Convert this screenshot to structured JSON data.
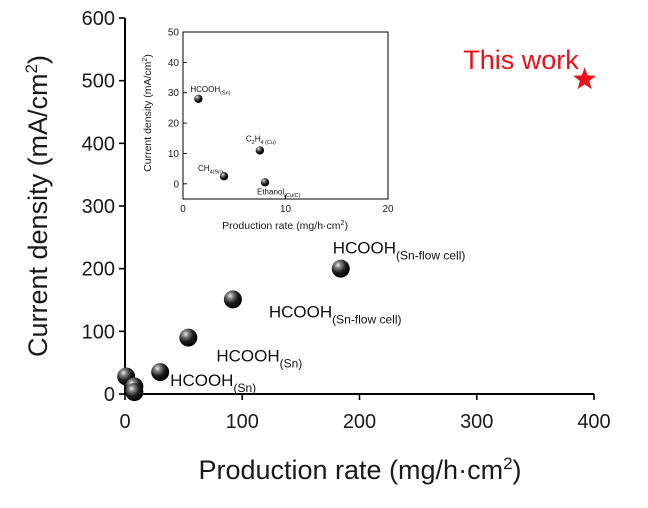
{
  "chart_data": [
    {
      "type": "scatter",
      "xlabel": "Production rate (mg/h·cm",
      "xlabel_sup": "2",
      "xlabel_end": ")",
      "ylabel": "Current density (mA/cm",
      "ylabel_sup": "2",
      "ylabel_end": ")",
      "xlim": [
        0,
        400
      ],
      "ylim": [
        0,
        600
      ],
      "xticks": [
        "0",
        "100",
        "200",
        "300",
        "400"
      ],
      "yticks": [
        "0",
        "100",
        "200",
        "300",
        "400",
        "500",
        "600"
      ],
      "grid": false,
      "points": [
        {
          "x": 1,
          "y": 28
        },
        {
          "x": 8,
          "y": 12
        },
        {
          "x": 8,
          "y": 3
        },
        {
          "x": 30,
          "y": 35,
          "label": "HCOOH",
          "sub": "(Sn)"
        },
        {
          "x": 54,
          "y": 90,
          "label": "HCOOH",
          "sub": "(Sn)"
        },
        {
          "x": 92,
          "y": 151,
          "label": "HCOOH",
          "sub": "(Sn-flow cell)"
        },
        {
          "x": 184,
          "y": 200,
          "label": "HCOOH",
          "sub": "(Sn-flow cell)"
        }
      ],
      "highlight": {
        "x": 392,
        "y": 502,
        "marker": "star",
        "color": "#e8121a",
        "label": "This work"
      },
      "marker_color": "#111111"
    },
    {
      "type": "scatter",
      "role": "inset",
      "xlabel": "Production rate (mg/h·cm",
      "xlabel_sup": "2",
      "xlabel_end": ")",
      "ylabel": "Current density (mA/cm",
      "ylabel_sup": "2",
      "ylabel_end": ")",
      "xlim": [
        0,
        20
      ],
      "ylim": [
        -5,
        50
      ],
      "xticks": [
        "0",
        "10",
        "20"
      ],
      "yticks": [
        "0",
        "10",
        "20",
        "30",
        "40",
        "50"
      ],
      "points": [
        {
          "x": 1.5,
          "y": 28,
          "label": "HCOOH",
          "sub": "(Sn)"
        },
        {
          "x": 7.5,
          "y": 11,
          "label": "C",
          "sub": "2",
          "label_end": "H",
          "sub2": "4 (Cu)"
        },
        {
          "x": 4,
          "y": 2.5,
          "label": "CH",
          "sub": "4(Sn)"
        },
        {
          "x": 8,
          "y": 0.5,
          "label": "Ethanol",
          "sub": "(Cu/C)"
        }
      ]
    }
  ]
}
